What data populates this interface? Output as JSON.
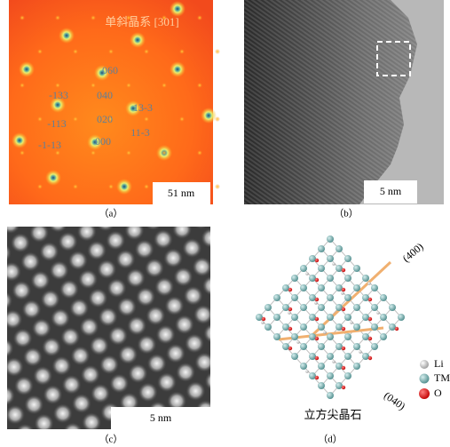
{
  "panels": [
    {
      "label": "（a）",
      "title": "单斜晶系 [301]",
      "spots": [
        "060",
        "-133",
        "040",
        "13-3",
        "-113",
        "020",
        "11-3",
        "-1-13",
        "000"
      ],
      "scale_bar": "51 nm"
    },
    {
      "label": "（b）",
      "scale_bar": "5 nm"
    },
    {
      "label": "（c）",
      "scale_bar": "5 nm"
    },
    {
      "label": "（d）",
      "directions": [
        "(400)",
        "(040)"
      ],
      "legend": [
        "Li",
        "TM",
        "O"
      ],
      "caption": "立方尖晶石"
    }
  ]
}
